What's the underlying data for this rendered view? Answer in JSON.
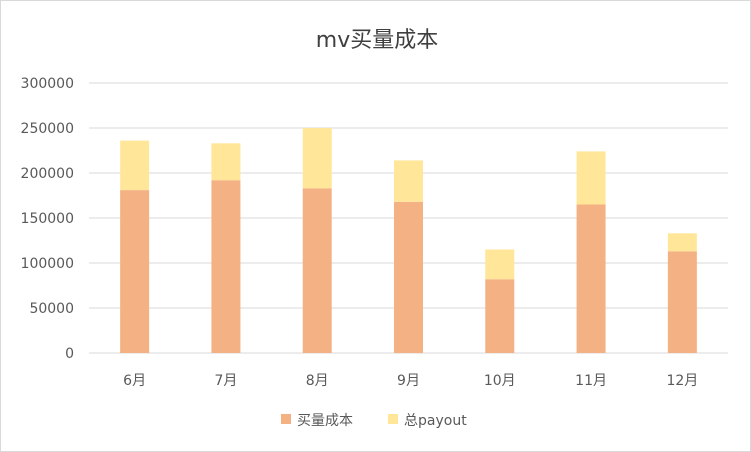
{
  "colors": {
    "series1": "#F4B183",
    "series2": "#FFE699",
    "grid": "#d9d9d9",
    "text": "#595959"
  },
  "chart_data": {
    "type": "bar",
    "stacked": true,
    "title": "mv买量成本",
    "categories": [
      "6月",
      "7月",
      "8月",
      "9月",
      "10月",
      "11月",
      "12月"
    ],
    "series": [
      {
        "name": "买量成本",
        "values": [
          181000,
          192000,
          183000,
          168000,
          82000,
          165000,
          113000
        ]
      },
      {
        "name": "总payout",
        "values": [
          55000,
          41000,
          67000,
          46000,
          33000,
          59000,
          20000
        ]
      }
    ],
    "ylim": [
      0,
      300000
    ],
    "yticks": [
      0,
      50000,
      100000,
      150000,
      200000,
      250000,
      300000
    ],
    "grid": true,
    "legend": "bottom"
  }
}
